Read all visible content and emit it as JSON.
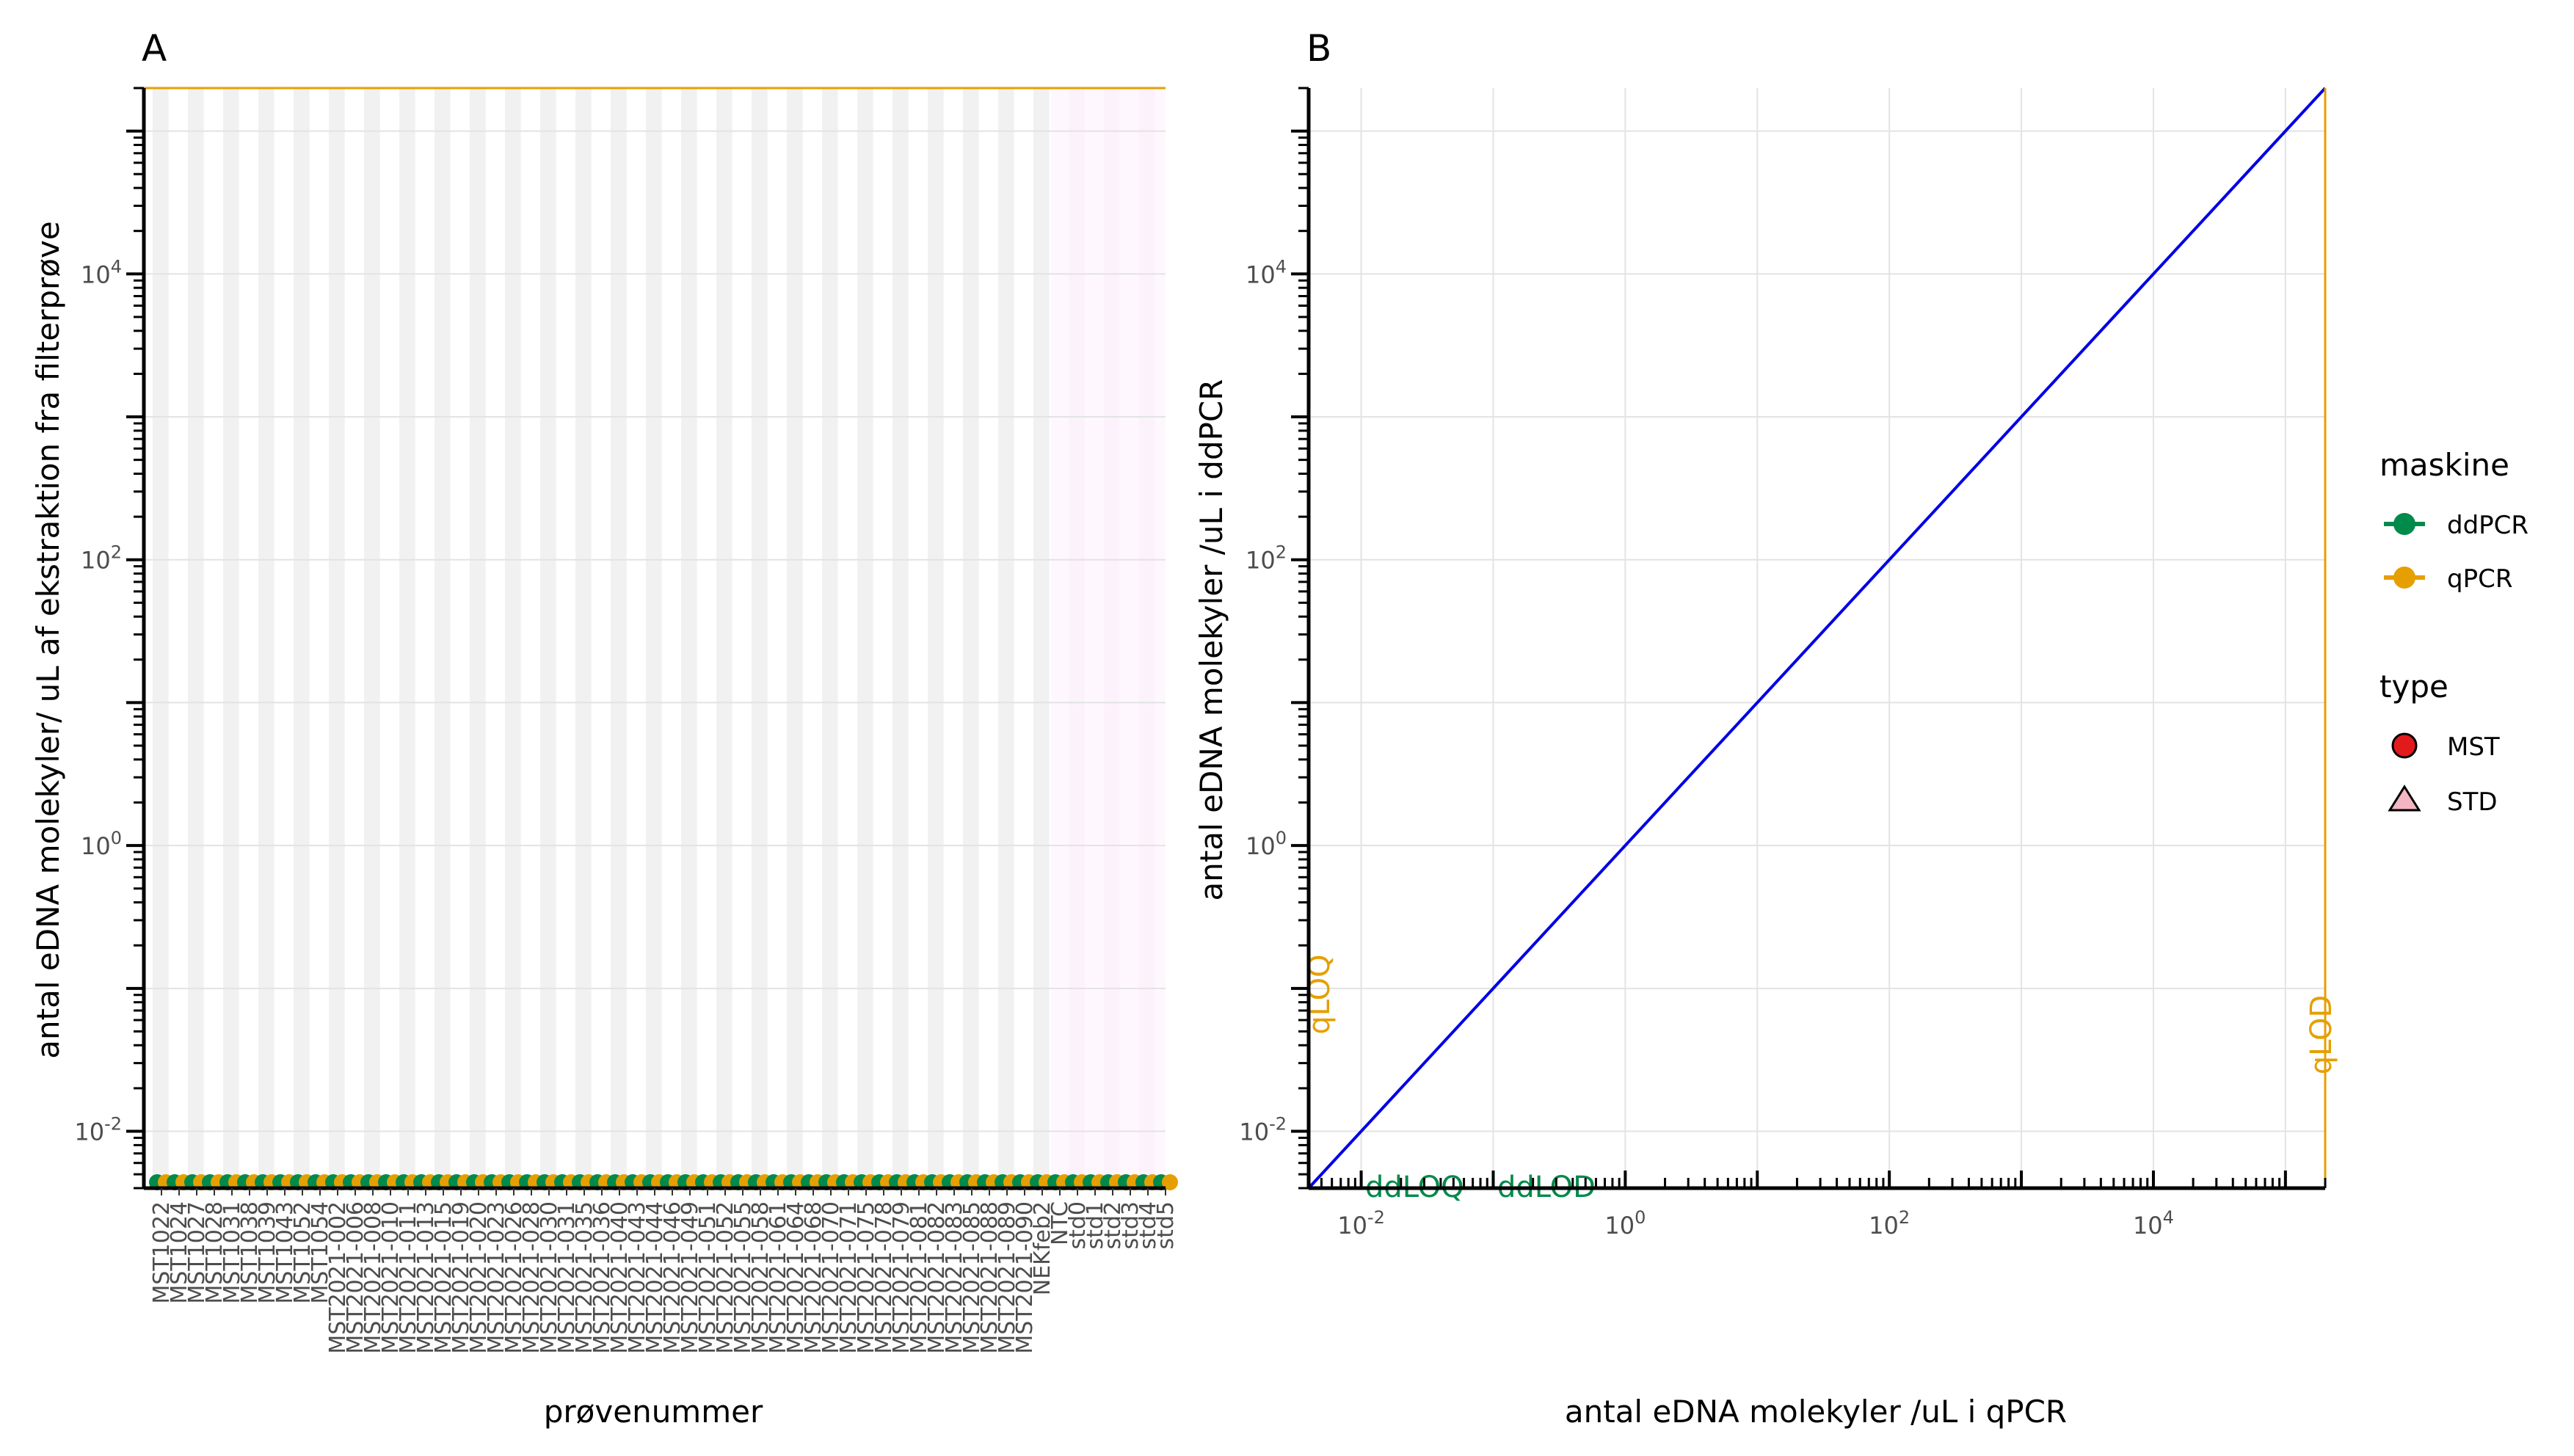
{
  "chart_data": [
    {
      "panel": "A",
      "type": "scatter",
      "xlabel": "prøvenummer",
      "ylabel": "antal eDNA molekyler/ uL af ekstraktion fra filterprøve",
      "y_scale": "log10",
      "ylim": [
        0.004,
        200000
      ],
      "y_ticks": [
        0.01,
        1,
        100,
        10000
      ],
      "y_tick_labels": [
        {
          "base": "10",
          "exp": "-2"
        },
        {
          "base": "10",
          "exp": "0"
        },
        {
          "base": "10",
          "exp": "2"
        },
        {
          "base": "10",
          "exp": "4"
        }
      ],
      "grid": true,
      "categories": [
        "MST1022",
        "MST1024",
        "MST1027",
        "MST1028",
        "MST1031",
        "MST1038",
        "MST1039",
        "MST1043",
        "MST1052",
        "MST1054",
        "MST2021-002",
        "MST2021-006",
        "MST2021-008",
        "MST2021-010",
        "MST2021-011",
        "MST2021-013",
        "MST2021-015",
        "MST2021-019",
        "MST2021-020",
        "MST2021-023",
        "MST2021-026",
        "MST2021-028",
        "MST2021-030",
        "MST2021-031",
        "MST2021-035",
        "MST2021-036",
        "MST2021-040",
        "MST2021-043",
        "MST2021-044",
        "MST2021-046",
        "MST2021-049",
        "MST2021-051",
        "MST2021-052",
        "MST2021-055",
        "MST2021-058",
        "MST2021-061",
        "MST2021-064",
        "MST2021-068",
        "MST2021-070",
        "MST2021-071",
        "MST2021-075",
        "MST2021-078",
        "MST2021-079",
        "MST2021-081",
        "MST2021-082",
        "MST2021-083",
        "MST2021-085",
        "MST2021-088",
        "MST2021-089",
        "MST2021-090",
        "NEKfeb2",
        "NTC",
        "std0",
        "std1",
        "std2",
        "std3",
        "std4",
        "std5"
      ],
      "series": [
        {
          "name": "ddPCR",
          "color": "#008a4b"
        },
        {
          "name": "qPCR",
          "color": "#e69f00"
        }
      ],
      "reference_line": {
        "y": 200000,
        "color": "#e69f00"
      }
    },
    {
      "panel": "B",
      "type": "scatter",
      "xlabel": "antal eDNA molekyler /uL i qPCR",
      "ylabel": "antal eDNA molekyler /uL i ddPCR",
      "x_scale": "log10",
      "y_scale": "log10",
      "xlim": [
        0.004,
        200000
      ],
      "ylim": [
        0.004,
        200000
      ],
      "x_ticks": [
        0.01,
        1,
        100,
        10000
      ],
      "y_ticks": [
        0.01,
        1,
        100,
        10000
      ],
      "tick_labels": [
        {
          "base": "10",
          "exp": "-2"
        },
        {
          "base": "10",
          "exp": "0"
        },
        {
          "base": "10",
          "exp": "2"
        },
        {
          "base": "10",
          "exp": "4"
        }
      ],
      "grid": true,
      "identity_line": {
        "color": "#0000e6"
      },
      "vline": {
        "x": 200000,
        "color": "#e69f00"
      },
      "annotations": [
        {
          "text": "qLOD",
          "color": "#e69f00"
        },
        {
          "text": "qLOQ",
          "color": "#e69f00"
        },
        {
          "text": "ddLOQ",
          "color": "#008a4b"
        },
        {
          "text": "ddLOD",
          "color": "#008a4b"
        }
      ]
    }
  ],
  "panels": {
    "a_tag": "A",
    "b_tag": "B"
  },
  "legend": {
    "placement": "right",
    "maskine_title": "maskine",
    "maskine_items": [
      {
        "label": "ddPCR",
        "color": "#008a4b"
      },
      {
        "label": "qPCR",
        "color": "#e69f00"
      }
    ],
    "type_title": "type",
    "type_items": [
      {
        "label": "MST",
        "shape": "circle",
        "fill": "#e31a1c"
      },
      {
        "label": "STD",
        "shape": "triangle",
        "fill": "#f4b6c2"
      }
    ]
  }
}
